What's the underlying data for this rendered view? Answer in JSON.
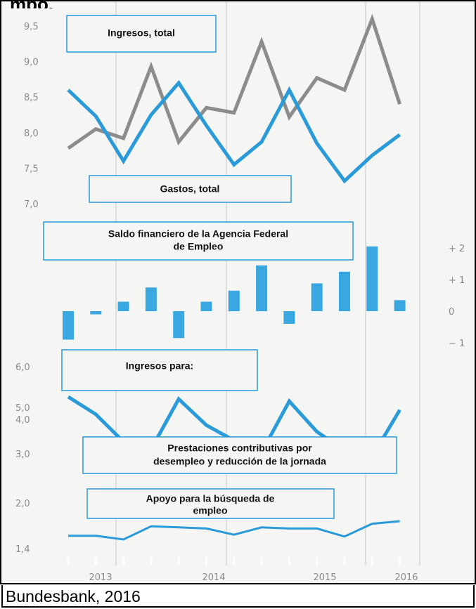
{
  "header_fragment": "mpo,",
  "caption": "Bundesbank, 2016",
  "colors": {
    "gray_line": "#8c8c8c",
    "blue_line": "#2a9ad9",
    "bar": "#3aa8e0",
    "grid": "#c8c8c8",
    "box_border": "#2a9ad9"
  },
  "chart_data": [
    {
      "type": "line",
      "x": [
        "2013-Q1",
        "2013-Q2",
        "2013-Q3",
        "2013-Q4",
        "2014-Q1",
        "2014-Q2",
        "2014-Q3",
        "2014-Q4",
        "2015-Q1",
        "2015-Q2",
        "2015-Q3",
        "2015-Q4",
        "2016-Q1"
      ],
      "series": [
        {
          "name": "Ingresos, total",
          "values": [
            7.78,
            8.05,
            7.92,
            8.93,
            7.87,
            8.35,
            8.28,
            9.28,
            8.22,
            8.77,
            8.6,
            9.6,
            8.4
          ]
        },
        {
          "name": "Gastos, total",
          "values": [
            8.6,
            8.23,
            7.6,
            8.25,
            8.7,
            8.1,
            7.55,
            7.87,
            8.6,
            7.85,
            7.32,
            7.68,
            7.97
          ]
        }
      ],
      "yticks": [
        "9,5",
        "9,0",
        "8,5",
        "8,0",
        "7,5",
        "7,0"
      ],
      "ylim": [
        7.0,
        9.5
      ]
    },
    {
      "type": "bar",
      "title": "Saldo financiero de la Agencia Federal de Empleo",
      "x": [
        "2013-Q1",
        "2013-Q2",
        "2013-Q3",
        "2013-Q4",
        "2014-Q1",
        "2014-Q2",
        "2014-Q3",
        "2014-Q4",
        "2015-Q1",
        "2015-Q2",
        "2015-Q3",
        "2015-Q4",
        "2016-Q1"
      ],
      "values": [
        -0.9,
        -0.1,
        0.3,
        0.75,
        -0.85,
        0.3,
        0.65,
        1.45,
        -0.4,
        0.88,
        1.25,
        2.05,
        0.35
      ],
      "yticks": [
        "+ 2",
        "+ 1",
        "0",
        "− 1"
      ],
      "ylim": [
        -1,
        2
      ]
    },
    {
      "type": "line",
      "title": "Ingresos para:",
      "x": [
        "2013-Q1",
        "2013-Q2",
        "2013-Q3",
        "2013-Q4",
        "2014-Q1",
        "2014-Q2",
        "2014-Q3",
        "2014-Q4",
        "2015-Q1",
        "2015-Q2",
        "2015-Q3",
        "2015-Q4",
        "2016-Q1"
      ],
      "series": [
        {
          "name": "Prestaciones contributivas por desempleo y reducción de la jornada",
          "values": [
            4.75,
            4.35,
            3.72,
            3.55,
            4.7,
            4.1,
            3.75,
            3.48,
            4.65,
            3.95,
            3.52,
            3.38,
            4.45
          ]
        },
        {
          "name": "Apoyo para la búsqueda de empleo",
          "values": [
            1.62,
            1.62,
            1.52,
            1.88,
            1.85,
            1.82,
            1.65,
            1.85,
            1.82,
            1.82,
            1.6,
            1.95,
            2.02
          ]
        }
      ],
      "yticks": [
        "6,0",
        "5,0",
        "4,0",
        "3,0",
        "2,0",
        "1,4"
      ],
      "years": [
        "2013",
        "2014",
        "2015",
        "2016"
      ]
    }
  ]
}
